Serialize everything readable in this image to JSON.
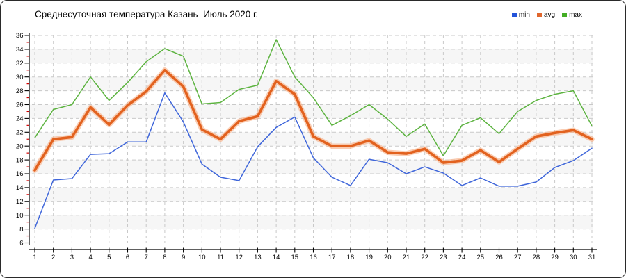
{
  "window": {
    "background": "#ffffff",
    "border_color": "#2a2a2a"
  },
  "title": "Среднесуточная температура Казань  Июль 2020 г.",
  "legend": {
    "items": [
      {
        "label": "min",
        "color": "#2353d9"
      },
      {
        "label": "avg",
        "color": "#e0662d"
      },
      {
        "label": "max",
        "color": "#43ad24"
      }
    ]
  },
  "chart_data": {
    "type": "line",
    "title": "Среднесуточная температура Казань  Июль 2020 г.",
    "xlabel": "",
    "ylabel": "",
    "x": [
      1,
      2,
      3,
      4,
      5,
      6,
      7,
      8,
      9,
      10,
      11,
      12,
      13,
      14,
      15,
      16,
      17,
      18,
      19,
      20,
      21,
      22,
      23,
      24,
      25,
      26,
      27,
      28,
      29,
      30,
      31
    ],
    "x_tick_labels": [
      "1",
      "2",
      "3",
      "4",
      "5",
      "6",
      "7",
      "8",
      "9",
      "10",
      "11",
      "12",
      "13",
      "14",
      "15",
      "16",
      "17",
      "18",
      "19",
      "20",
      "21",
      "22",
      "23",
      "24",
      "25",
      "26",
      "27",
      "28",
      "29",
      "30",
      "31"
    ],
    "y_ticks": [
      6,
      8,
      10,
      12,
      14,
      16,
      18,
      20,
      22,
      24,
      26,
      28,
      30,
      32,
      34,
      36
    ],
    "y_minor_ticks": [
      7,
      9,
      11,
      13,
      15,
      17,
      19,
      21,
      23,
      25,
      27,
      29,
      31,
      33,
      35
    ],
    "ylim": [
      6,
      36
    ],
    "grid": true,
    "band_colors": [
      "#ffffff",
      "#f6f6f6"
    ],
    "gridline_color": "#c9c9c9",
    "axis_color": "#000000",
    "minor_tick_color": "#d40000",
    "legend_position": "top-right",
    "series": [
      {
        "name": "max",
        "color": "#5cb33f",
        "width": 1.5,
        "values": [
          21.2,
          25.3,
          26.0,
          30.0,
          26.6,
          29.2,
          32.2,
          34.1,
          33.0,
          26.1,
          26.3,
          28.2,
          28.8,
          35.4,
          30.0,
          27.0,
          23.0,
          24.4,
          26.0,
          23.9,
          21.4,
          23.2,
          18.6,
          23.0,
          24.1,
          21.8,
          25.0,
          26.6,
          27.5,
          28.0,
          22.9
        ]
      },
      {
        "name": "avg",
        "color": "#e2621f",
        "halo_color": "#f7b28a",
        "width": 3.6,
        "values": [
          16.5,
          21.0,
          21.3,
          25.6,
          23.1,
          25.9,
          27.9,
          31.0,
          28.6,
          22.4,
          21.0,
          23.6,
          24.3,
          29.4,
          27.5,
          21.4,
          20.0,
          20.0,
          20.8,
          19.1,
          18.9,
          19.6,
          17.6,
          17.9,
          19.4,
          17.7,
          19.6,
          21.4,
          21.9,
          22.3,
          21.0
        ]
      },
      {
        "name": "min",
        "color": "#3f66da",
        "width": 1.5,
        "values": [
          8.1,
          15.1,
          15.3,
          18.8,
          18.9,
          20.6,
          20.6,
          27.7,
          23.5,
          17.4,
          15.5,
          15.0,
          19.9,
          22.7,
          24.2,
          18.3,
          15.5,
          14.3,
          18.1,
          17.6,
          16.0,
          17.0,
          16.1,
          14.3,
          15.4,
          14.2,
          14.2,
          14.8,
          16.9,
          17.9,
          19.7
        ]
      }
    ]
  }
}
